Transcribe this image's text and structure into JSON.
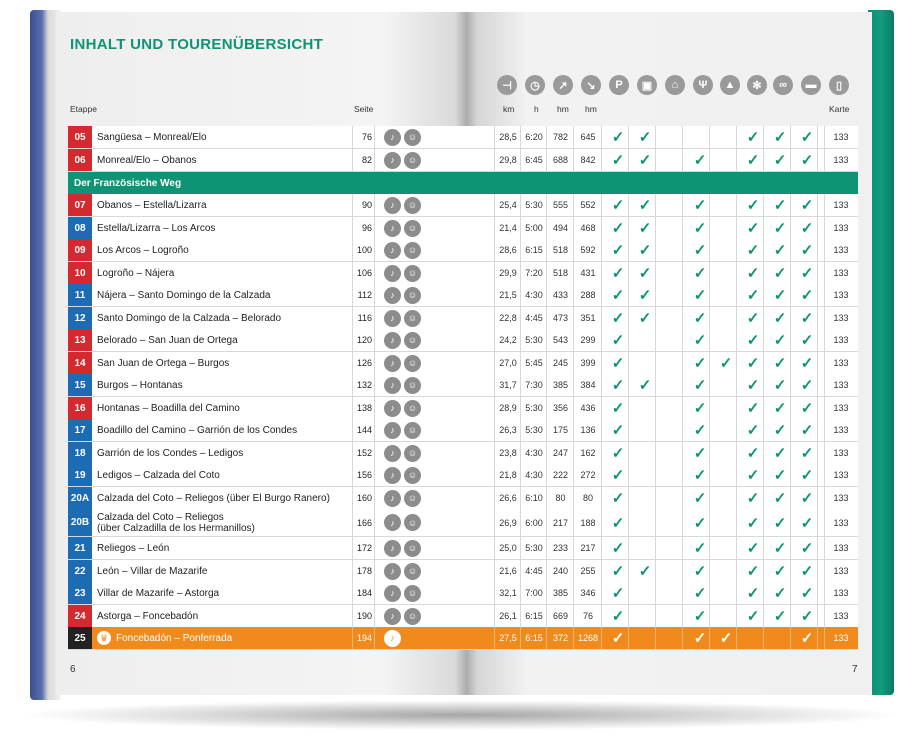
{
  "title": "INHALT UND TOURENÜBERSICHT",
  "headers": {
    "etappe": "Etappe",
    "seite": "Seite",
    "km": "km",
    "h": "h",
    "hm_up": "hm",
    "hm_down": "hm",
    "karte": "Karte"
  },
  "header_icons": [
    {
      "name": "signpost-icon",
      "glyph": "⊣"
    },
    {
      "name": "clock-icon",
      "glyph": "◷"
    },
    {
      "name": "ascent-icon",
      "glyph": "↗"
    },
    {
      "name": "descent-icon",
      "glyph": "↘"
    },
    {
      "name": "parking-icon",
      "glyph": "P"
    },
    {
      "name": "bus-icon",
      "glyph": "▣"
    },
    {
      "name": "cablecar-icon",
      "glyph": "⌂"
    },
    {
      "name": "restaurant-icon",
      "glyph": "Ψ"
    },
    {
      "name": "summit-icon",
      "glyph": "▲"
    },
    {
      "name": "winter-icon",
      "glyph": "✻"
    },
    {
      "name": "bicycle-icon",
      "glyph": "∞"
    },
    {
      "name": "bed-icon",
      "glyph": "▬"
    },
    {
      "name": "map-icon",
      "glyph": "▯"
    }
  ],
  "section_label": "Der Französische Weg",
  "colors": {
    "red": "#d42a2f",
    "blue": "#1c6bb5",
    "black": "#222222",
    "teal": "#0e9474",
    "orange": "#f18a1c"
  },
  "rows": [
    {
      "num": "05",
      "color": "#d42a2f",
      "name": "Sangüesa – Monreal/Elo",
      "page": "76",
      "km": "28,5",
      "h": "6:20",
      "up": "782",
      "down": "645",
      "checks": [
        1,
        1,
        0,
        0,
        0,
        1,
        1,
        1
      ],
      "karte": "133"
    },
    {
      "num": "06",
      "color": "#d42a2f",
      "name": "Monreal/Elo – Obanos",
      "page": "82",
      "km": "29,8",
      "h": "6:45",
      "up": "688",
      "down": "842",
      "checks": [
        1,
        1,
        0,
        1,
        0,
        1,
        1,
        1
      ],
      "karte": "133"
    },
    {
      "num": "07",
      "color": "#d42a2f",
      "name": "Obanos – Estella/Lizarra",
      "page": "90",
      "km": "25,4",
      "h": "5:30",
      "up": "555",
      "down": "552",
      "checks": [
        1,
        1,
        0,
        1,
        0,
        1,
        1,
        1
      ],
      "karte": "133"
    },
    {
      "num": "08",
      "color": "#1c6bb5",
      "name": "Estella/Lizarra – Los Arcos",
      "page": "96",
      "km": "21,4",
      "h": "5:00",
      "up": "494",
      "down": "468",
      "checks": [
        1,
        1,
        0,
        1,
        0,
        1,
        1,
        1
      ],
      "karte": "133"
    },
    {
      "num": "09",
      "color": "#d42a2f",
      "name": "Los Arcos – Logroño",
      "page": "100",
      "km": "28,6",
      "h": "6:15",
      "up": "518",
      "down": "592",
      "checks": [
        1,
        1,
        0,
        1,
        0,
        1,
        1,
        1
      ],
      "karte": "133"
    },
    {
      "num": "10",
      "color": "#d42a2f",
      "name": "Logroño – Nájera",
      "page": "106",
      "km": "29,9",
      "h": "7:20",
      "up": "518",
      "down": "431",
      "checks": [
        1,
        1,
        0,
        1,
        0,
        1,
        1,
        1
      ],
      "karte": "133"
    },
    {
      "num": "11",
      "color": "#1c6bb5",
      "name": "Nájera – Santo Domingo de la Calzada",
      "page": "112",
      "km": "21,5",
      "h": "4:30",
      "up": "433",
      "down": "288",
      "checks": [
        1,
        1,
        0,
        1,
        0,
        1,
        1,
        1
      ],
      "karte": "133"
    },
    {
      "num": "12",
      "color": "#1c6bb5",
      "name": "Santo Domingo de la Calzada – Belorado",
      "page": "116",
      "km": "22,8",
      "h": "4:45",
      "up": "473",
      "down": "351",
      "checks": [
        1,
        1,
        0,
        1,
        0,
        1,
        1,
        1
      ],
      "karte": "133"
    },
    {
      "num": "13",
      "color": "#d42a2f",
      "name": "Belorado – San Juan de Ortega",
      "page": "120",
      "km": "24,2",
      "h": "5:30",
      "up": "543",
      "down": "299",
      "checks": [
        1,
        0,
        0,
        1,
        0,
        1,
        1,
        1
      ],
      "karte": "133"
    },
    {
      "num": "14",
      "color": "#d42a2f",
      "name": "San Juan de Ortega – Burgos",
      "page": "126",
      "km": "27,0",
      "h": "5:45",
      "up": "245",
      "down": "399",
      "checks": [
        1,
        0,
        0,
        1,
        1,
        1,
        1,
        1
      ],
      "karte": "133"
    },
    {
      "num": "15",
      "color": "#1c6bb5",
      "name": "Burgos – Hontanas",
      "page": "132",
      "km": "31,7",
      "h": "7:30",
      "up": "385",
      "down": "384",
      "checks": [
        1,
        1,
        0,
        1,
        0,
        1,
        1,
        1
      ],
      "karte": "133"
    },
    {
      "num": "16",
      "color": "#d42a2f",
      "name": "Hontanas – Boadilla del Camino",
      "page": "138",
      "km": "28,9",
      "h": "5:30",
      "up": "356",
      "down": "436",
      "checks": [
        1,
        0,
        0,
        1,
        0,
        1,
        1,
        1
      ],
      "karte": "133"
    },
    {
      "num": "17",
      "color": "#1c6bb5",
      "name": "Boadillo del Camino – Garrión de los Condes",
      "page": "144",
      "km": "26,3",
      "h": "5:30",
      "up": "175",
      "down": "136",
      "checks": [
        1,
        0,
        0,
        1,
        0,
        1,
        1,
        1
      ],
      "karte": "133"
    },
    {
      "num": "18",
      "color": "#1c6bb5",
      "name": "Garrión de los Condes – Ledigos",
      "page": "152",
      "km": "23,8",
      "h": "4:30",
      "up": "247",
      "down": "162",
      "checks": [
        1,
        0,
        0,
        1,
        0,
        1,
        1,
        1
      ],
      "karte": "133"
    },
    {
      "num": "19",
      "color": "#1c6bb5",
      "name": "Ledigos – Calzada del Coto",
      "page": "156",
      "km": "21,8",
      "h": "4:30",
      "up": "222",
      "down": "272",
      "checks": [
        1,
        0,
        0,
        1,
        0,
        1,
        1,
        1
      ],
      "karte": "133"
    },
    {
      "num": "20A",
      "color": "#1c6bb5",
      "name": "Calzada del Coto – Reliegos (über El Burgo Ranero)",
      "page": "160",
      "km": "26,6",
      "h": "6:10",
      "up": "80",
      "down": "80",
      "checks": [
        1,
        0,
        0,
        1,
        0,
        1,
        1,
        1
      ],
      "karte": "133"
    },
    {
      "num": "20B",
      "color": "#1c6bb5",
      "name": "Calzada del Coto – Reliegos\n(über Calzadilla de los Hermanillos)",
      "page": "166",
      "km": "26,9",
      "h": "6:00",
      "up": "217",
      "down": "188",
      "checks": [
        1,
        0,
        0,
        1,
        0,
        1,
        1,
        1
      ],
      "karte": "133",
      "tall": true
    },
    {
      "num": "21",
      "color": "#1c6bb5",
      "name": "Reliegos – León",
      "page": "172",
      "km": "25,0",
      "h": "5:30",
      "up": "233",
      "down": "217",
      "checks": [
        1,
        0,
        0,
        1,
        0,
        1,
        1,
        1
      ],
      "karte": "133"
    },
    {
      "num": "22",
      "color": "#1c6bb5",
      "name": "León – Villar de Mazarife",
      "page": "178",
      "km": "21,6",
      "h": "4:45",
      "up": "240",
      "down": "255",
      "checks": [
        1,
        1,
        0,
        1,
        0,
        1,
        1,
        1
      ],
      "karte": "133"
    },
    {
      "num": "23",
      "color": "#1c6bb5",
      "name": "Villar de Mazarife – Astorga",
      "page": "184",
      "km": "32,1",
      "h": "7:00",
      "up": "385",
      "down": "346",
      "checks": [
        1,
        0,
        0,
        1,
        0,
        1,
        1,
        1
      ],
      "karte": "133"
    },
    {
      "num": "24",
      "color": "#d42a2f",
      "name": "Astorga – Foncebadón",
      "page": "190",
      "km": "26,1",
      "h": "6:15",
      "up": "669",
      "down": "76",
      "checks": [
        1,
        0,
        0,
        1,
        0,
        1,
        1,
        1
      ],
      "karte": "133"
    },
    {
      "num": "25",
      "color": "#222222",
      "name": "Foncebadón – Ponferrada",
      "page": "194",
      "km": "27,5",
      "h": "6:15",
      "up": "372",
      "down": "1268",
      "checks": [
        1,
        0,
        0,
        1,
        1,
        0,
        0,
        1
      ],
      "karte": "133",
      "highlight": true
    }
  ],
  "folio_left": "6",
  "folio_right": "7"
}
